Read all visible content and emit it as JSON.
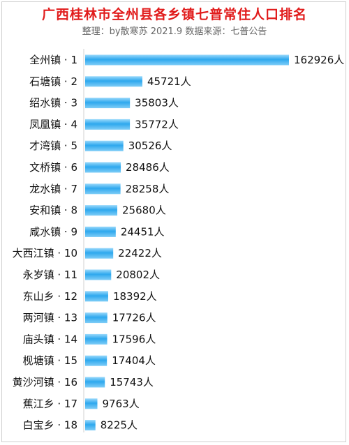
{
  "header": {
    "title": "广西桂林市全州县各乡镇七普常住人口排名",
    "subtitle": "整理：by散寒苏  2021.9  数据来源：七普公告"
  },
  "chart_data": {
    "type": "bar",
    "orientation": "horizontal",
    "title": "广西桂林市全州县各乡镇七普常住人口排名",
    "subtitle": "整理：by散寒苏  2021.9  数据来源：七普公告",
    "categories": [
      "全州镇 · 1",
      "石塘镇 · 2",
      "绍水镇 · 3",
      "凤凰镇 · 4",
      "才湾镇 · 5",
      "文桥镇 · 6",
      "龙水镇 · 7",
      "安和镇 · 8",
      "咸水镇 · 9",
      "大西江镇 · 10",
      "永岁镇 · 11",
      "东山乡 · 12",
      "两河镇 · 13",
      "庙头镇 · 14",
      "枧塘镇 · 15",
      "黄沙河镇 · 16",
      "蕉江乡 · 17",
      "白宝乡 · 18"
    ],
    "values": [
      162926,
      45721,
      35803,
      35772,
      30526,
      28486,
      28258,
      25680,
      24451,
      22422,
      20802,
      18392,
      17726,
      17596,
      17404,
      15743,
      9763,
      8225
    ],
    "value_labels": [
      "162926人",
      "45721人",
      "35803人",
      "35772人",
      "30526人",
      "28486人",
      "28258人",
      "25680人",
      "24451人",
      "22422人",
      "20802人",
      "18392人",
      "17726人",
      "17596人",
      "17404人",
      "15743人",
      "9763人",
      "8225人"
    ],
    "xlim": [
      0,
      162926
    ],
    "grid": false,
    "bar_color": "#38aef0"
  }
}
